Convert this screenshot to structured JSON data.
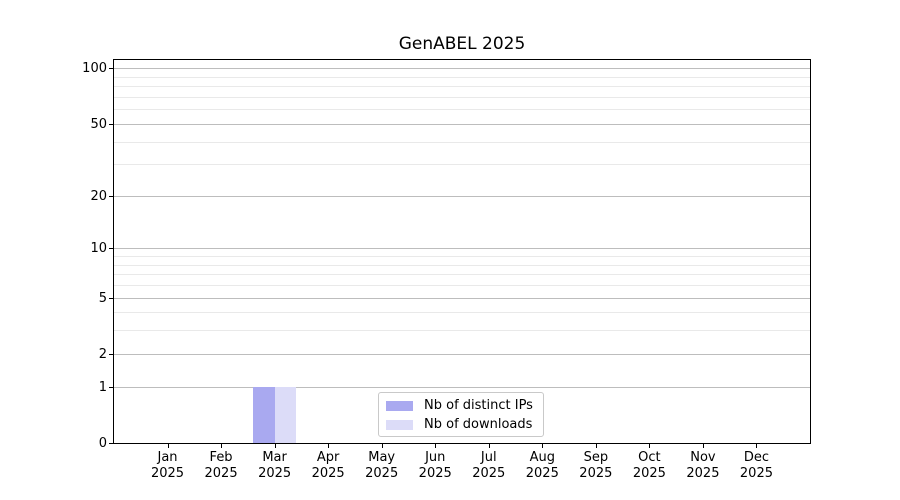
{
  "chart_data": {
    "type": "bar",
    "title": "GenABEL 2025",
    "xlabel": "",
    "ylabel": "",
    "x_tick_labels": [
      [
        "Jan",
        "2025"
      ],
      [
        "Feb",
        "2025"
      ],
      [
        "Mar",
        "2025"
      ],
      [
        "Apr",
        "2025"
      ],
      [
        "May",
        "2025"
      ],
      [
        "Jun",
        "2025"
      ],
      [
        "Jul",
        "2025"
      ],
      [
        "Aug",
        "2025"
      ],
      [
        "Sep",
        "2025"
      ],
      [
        "Oct",
        "2025"
      ],
      [
        "Nov",
        "2025"
      ],
      [
        "Dec",
        "2025"
      ]
    ],
    "categories": [
      "Jan 2025",
      "Feb 2025",
      "Mar 2025",
      "Apr 2025",
      "May 2025",
      "Jun 2025",
      "Jul 2025",
      "Aug 2025",
      "Sep 2025",
      "Oct 2025",
      "Nov 2025",
      "Dec 2025"
    ],
    "series": [
      {
        "name": "Nb of distinct IPs",
        "color": "#a9a9f0",
        "values": [
          0,
          0,
          1,
          0,
          0,
          0,
          0,
          0,
          0,
          0,
          0,
          0
        ]
      },
      {
        "name": "Nb of downloads",
        "color": "#dcdcf8",
        "values": [
          0,
          0,
          1,
          0,
          0,
          0,
          0,
          0,
          0,
          0,
          0,
          0
        ]
      }
    ],
    "y_axis": {
      "scale": "log1p",
      "major_ticks": [
        0,
        1,
        2,
        5,
        10,
        20,
        50,
        100
      ],
      "minor_ticks": [
        3,
        4,
        6,
        7,
        8,
        9,
        30,
        40,
        60,
        70,
        80,
        90
      ],
      "top_value": 111,
      "ylim": [
        0,
        111
      ]
    },
    "grid": {
      "major_color": "#bdbdbd",
      "minor_color": "#e9e9e9"
    },
    "legend": {
      "position": "lower-center"
    },
    "colors": {
      "spine": "#000000",
      "background": "#ffffff",
      "text": "#000000"
    }
  }
}
